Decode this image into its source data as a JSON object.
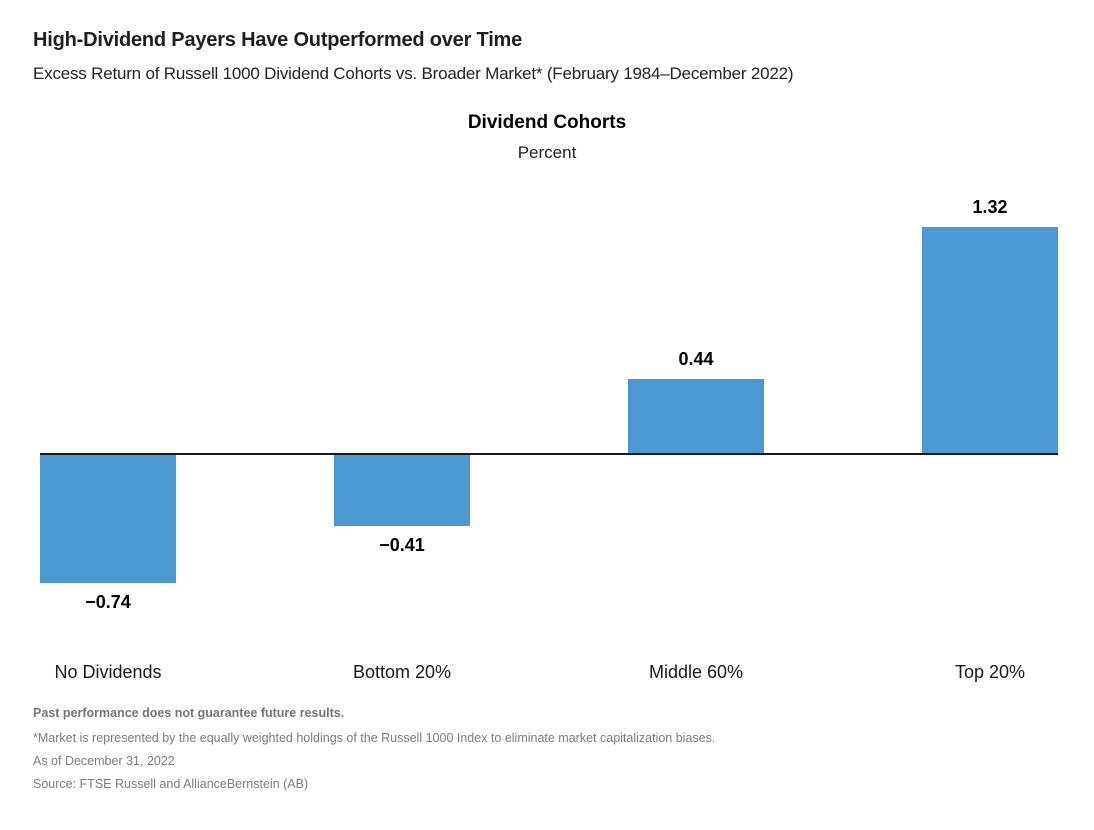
{
  "header": {
    "title": "High-Dividend Payers Have Outperformed over Time",
    "subtitle": "Excess Return of Russell 1000 Dividend Cohorts vs. Broader Market* (February 1984–December 2022)"
  },
  "chart_data": {
    "type": "bar",
    "title": "Dividend Cohorts",
    "unit_label": "Percent",
    "categories": [
      "No Dividends",
      "Bottom 20%",
      "Middle 60%",
      "Top 20%"
    ],
    "values": [
      -0.74,
      -0.41,
      0.44,
      1.32
    ],
    "value_labels": [
      "−0.74",
      "−0.41",
      "0.44",
      "1.32"
    ],
    "bar_color": "#4A99D2",
    "baseline_color": "#1a1a1a",
    "baseline_value": 0,
    "ylim": [
      -0.9,
      1.6
    ],
    "grid": false,
    "legend": false,
    "value_label_position": "outside-end"
  },
  "footnotes": {
    "disclaimer": "Past performance does not guarantee future results.",
    "market_note": "*Market is represented by the equally weighted holdings of the Russell 1000 Index to eliminate market capitalization biases.",
    "as_of": "As of December 31, 2022",
    "source": "Source: FTSE Russell and AllianceBernstein (AB)"
  }
}
